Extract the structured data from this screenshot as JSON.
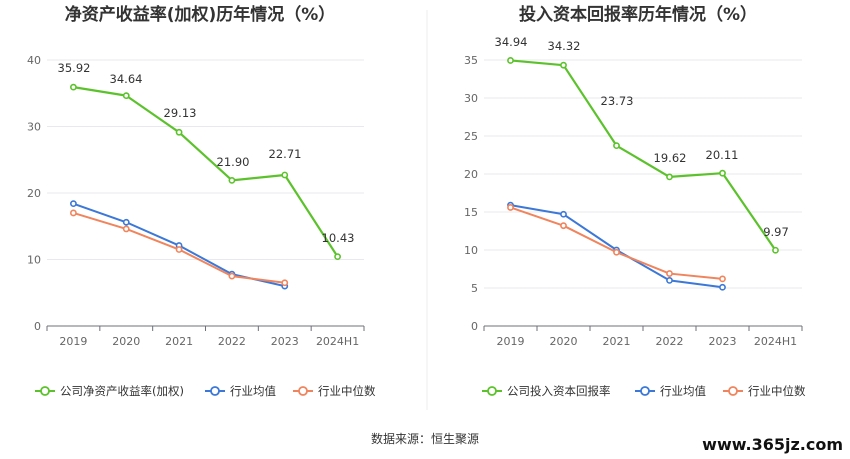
{
  "charts": [
    {
      "title": "净资产收益率(加权)历年情况（%）",
      "categories": [
        "2019",
        "2020",
        "2021",
        "2022",
        "2023",
        "2024H1"
      ],
      "y_ticks": [
        "0",
        "10",
        "20",
        "30",
        "40"
      ],
      "legend": [
        "公司净资产收益率(加权)",
        "行业均值",
        "行业中位数"
      ]
    },
    {
      "title": "投入资本回报率历年情况（%）",
      "categories": [
        "2019",
        "2020",
        "2021",
        "2022",
        "2023",
        "2024H1"
      ],
      "y_ticks": [
        "0",
        "5",
        "10",
        "15",
        "20",
        "25",
        "30",
        "35"
      ],
      "legend": [
        "公司投入资本回报率",
        "行业均值",
        "行业中位数"
      ]
    }
  ],
  "chart_data": [
    {
      "type": "line",
      "title": "净资产收益率(加权)历年情况（%）",
      "categories": [
        "2019",
        "2020",
        "2021",
        "2022",
        "2023",
        "2024H1"
      ],
      "ylim": [
        0,
        40
      ],
      "grid": true,
      "legend_position": "bottom",
      "series": [
        {
          "name": "公司净资产收益率(加权)",
          "color": "#5cc22c",
          "values": [
            35.92,
            34.64,
            29.13,
            21.9,
            22.71,
            10.43
          ],
          "labels": [
            "35.92",
            "34.64",
            "29.13",
            "21.90",
            "22.71",
            "10.43"
          ]
        },
        {
          "name": "行业均值",
          "color": "#3b78d8",
          "values": [
            18.4,
            15.6,
            12.1,
            7.8,
            6.0,
            null
          ]
        },
        {
          "name": "行业中位数",
          "color": "#f0845c",
          "values": [
            17.0,
            14.6,
            11.5,
            7.5,
            6.5,
            null
          ]
        }
      ]
    },
    {
      "type": "line",
      "title": "投入资本回报率历年情况（%）",
      "categories": [
        "2019",
        "2020",
        "2021",
        "2022",
        "2023",
        "2024H1"
      ],
      "ylim": [
        0,
        35
      ],
      "grid": true,
      "legend_position": "bottom",
      "series": [
        {
          "name": "公司投入资本回报率",
          "color": "#5cc22c",
          "values": [
            34.94,
            34.32,
            23.73,
            19.62,
            20.11,
            9.97
          ],
          "labels": [
            "34.94",
            "34.32",
            "23.73",
            "19.62",
            "20.11",
            "9.97"
          ]
        },
        {
          "name": "行业均值",
          "color": "#3b78d8",
          "values": [
            15.9,
            14.7,
            10.0,
            6.0,
            5.1,
            null
          ]
        },
        {
          "name": "行业中位数",
          "color": "#f0845c",
          "values": [
            15.6,
            13.2,
            9.7,
            6.9,
            6.2,
            null
          ]
        }
      ]
    }
  ],
  "footer": {
    "source": "数据来源：恒生聚源",
    "watermark": "www.365jz.com"
  }
}
